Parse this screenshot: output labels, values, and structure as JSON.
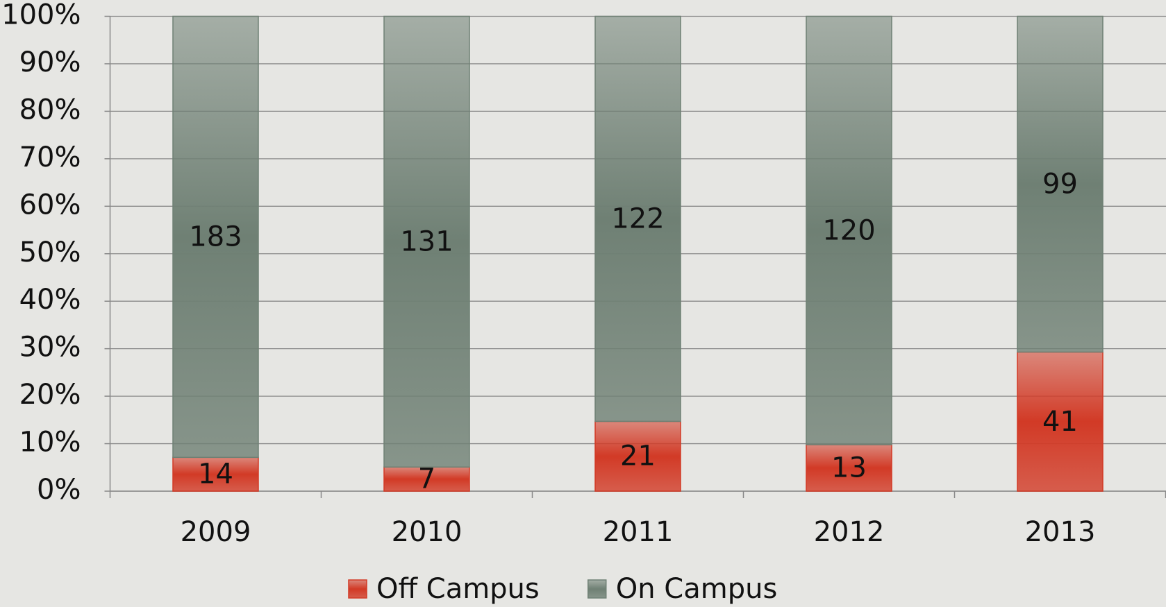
{
  "chart_data": {
    "type": "bar",
    "stacked": "percent",
    "categories": [
      "2009",
      "2010",
      "2011",
      "2012",
      "2013"
    ],
    "series": [
      {
        "name": "Off Campus",
        "color": "#d23a26",
        "values": [
          14,
          7,
          21,
          13,
          41
        ]
      },
      {
        "name": "On Campus",
        "color": "#6f8074",
        "values": [
          183,
          131,
          122,
          120,
          99
        ]
      }
    ],
    "ylim": [
      0,
      100
    ],
    "yticks": [
      {
        "value": 0,
        "label": "0%"
      },
      {
        "value": 10,
        "label": "10%"
      },
      {
        "value": 20,
        "label": "20%"
      },
      {
        "value": 30,
        "label": "30%"
      },
      {
        "value": 40,
        "label": "40%"
      },
      {
        "value": 50,
        "label": "50%"
      },
      {
        "value": 60,
        "label": "60%"
      },
      {
        "value": 70,
        "label": "70%"
      },
      {
        "value": 80,
        "label": "80%"
      },
      {
        "value": 90,
        "label": "90%"
      },
      {
        "value": 100,
        "label": "100%"
      }
    ],
    "grid": true,
    "legend": "bottom"
  }
}
